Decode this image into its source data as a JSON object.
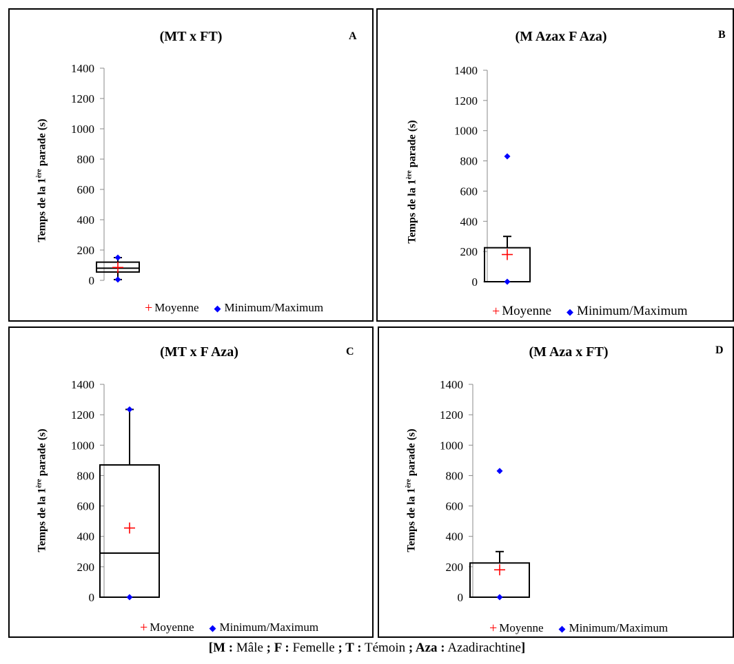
{
  "chart_data": [
    {
      "type": "box",
      "letter": "A",
      "title": "(MT x FT)",
      "ylabel_main": "Temps de la 1",
      "ylabel_sup": "ère",
      "ylabel_rest": " parade (s)",
      "ylim": [
        0,
        1400
      ],
      "yticks": [
        0,
        200,
        400,
        600,
        800,
        1000,
        1200,
        1400
      ],
      "box": {
        "min": 5,
        "q1": 55,
        "median": 80,
        "q3": 120,
        "max": 150,
        "mean": 85
      },
      "legend": {
        "mean_label": "Moyenne",
        "minmax_label": "Minimum/Maximum"
      }
    },
    {
      "type": "box",
      "letter": "B",
      "title": "(M Azax F Aza)",
      "ylabel_main": "Temps de la 1",
      "ylabel_sup": "ère",
      "ylabel_rest": " parade (s)",
      "ylim": [
        0,
        1400
      ],
      "yticks": [
        0,
        200,
        400,
        600,
        800,
        1000,
        1200,
        1400
      ],
      "box": {
        "min": 0,
        "q1": 0,
        "median": 0,
        "q3": 225,
        "whisker_high": 300,
        "max": 830,
        "mean": 180
      },
      "legend": {
        "mean_label": "Moyenne",
        "minmax_label": "Minimum/Maximum"
      }
    },
    {
      "type": "box",
      "letter": "C",
      "title": "(MT x F Aza)",
      "ylabel_main": "Temps de la 1",
      "ylabel_sup": "ère",
      "ylabel_rest": " parade (s)",
      "ylim": [
        0,
        1400
      ],
      "yticks": [
        0,
        200,
        400,
        600,
        800,
        1000,
        1200,
        1400
      ],
      "box": {
        "min": 0,
        "q1": 0,
        "median": 290,
        "q3": 870,
        "max": 1235,
        "mean": 455
      },
      "legend": {
        "mean_label": "Moyenne",
        "minmax_label": "Minimum/Maximum"
      }
    },
    {
      "type": "box",
      "letter": "D",
      "title": "(M Aza x FT)",
      "ylabel_main": "Temps de la 1",
      "ylabel_sup": "ère",
      "ylabel_rest": " parade (s)",
      "ylim": [
        0,
        1400
      ],
      "yticks": [
        0,
        200,
        400,
        600,
        800,
        1000,
        1200,
        1400
      ],
      "box": {
        "min": 0,
        "q1": 0,
        "median": 0,
        "q3": 225,
        "whisker_high": 300,
        "max": 830,
        "mean": 180
      },
      "legend": {
        "mean_label": "Moyenne",
        "minmax_label": "Minimum/Maximum"
      }
    }
  ],
  "caption": {
    "open": "[",
    "m_key": "M :",
    "m_val": " Mâle ",
    "sep1": "; ",
    "f_key": "F :",
    "f_val": " Femelle ",
    "sep2": "; ",
    "t_key": "T :",
    "t_val": " Témoin ",
    "sep3": "; ",
    "a_key": "Aza :",
    "a_val": " Azadirachtine",
    "close": "]"
  },
  "colors": {
    "mean": "#ff0000",
    "minmax": "#0000ff",
    "box": "#000000"
  }
}
